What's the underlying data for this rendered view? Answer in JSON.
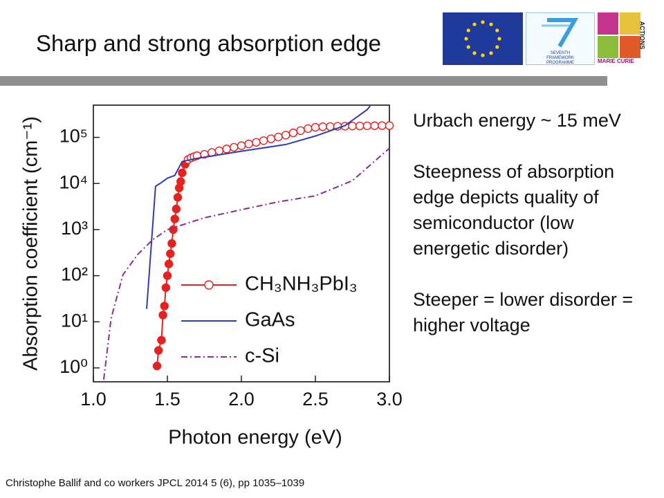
{
  "slide": {
    "title": "Sharp and strong absorption edge",
    "bullets": [
      "Urbach energy ~ 15 meV",
      "Steepness of absorption edge depicts quality of semiconductor (low energetic disorder)",
      "Steeper = lower disorder = higher voltage"
    ],
    "citation": "Christophe Ballif and co workers JPCL 2014 5 (6), pp 1035–1039",
    "logos": {
      "fp7": "SEVENTH FRAMEWORK PROGRAMME",
      "marie_curie": "MARIE CURIE",
      "actions": "ACTIONS"
    }
  },
  "chart_data": {
    "type": "line",
    "xlabel": "Photon energy (eV)",
    "ylabel": "Absorption coefficient (cm⁻¹)",
    "xlim": [
      1.0,
      3.0
    ],
    "ylim": [
      0.5,
      500000
    ],
    "ylog": true,
    "xticks": [
      {
        "value": 1,
        "label": "1.0"
      },
      1.5,
      {
        "value": 2,
        "label": "2.0"
      },
      2.5,
      {
        "value": 3,
        "label": "3.0"
      }
    ],
    "yticks": [
      {
        "value": 1,
        "label": "10⁰"
      },
      {
        "value": 10,
        "label": "10¹"
      },
      {
        "value": 100,
        "label": "10²"
      },
      {
        "value": 1000,
        "label": "10³"
      },
      {
        "value": 10000,
        "label": "10⁴"
      },
      {
        "value": 100000,
        "label": "10⁵"
      }
    ],
    "legend": "lower right",
    "series": [
      {
        "name": "CH₃NH₃PbI₃",
        "color": "#e8201e",
        "marker": "circle",
        "dash": "solid",
        "x": [
          1.43,
          1.44,
          1.46,
          1.47,
          1.48,
          1.49,
          1.5,
          1.51,
          1.52,
          1.53,
          1.54,
          1.55,
          1.56,
          1.57,
          1.58,
          1.59,
          1.6,
          1.62,
          1.64,
          1.66,
          1.68,
          1.7,
          1.75,
          1.8,
          1.85,
          1.9,
          1.95,
          2.0,
          2.05,
          2.1,
          2.15,
          2.2,
          2.25,
          2.3,
          2.35,
          2.4,
          2.45,
          2.5,
          2.55,
          2.6,
          2.65,
          2.7,
          2.75,
          2.8,
          2.85,
          2.9,
          2.95,
          3.0
        ],
        "values": [
          1.1,
          2.4,
          4,
          14,
          22,
          55,
          100,
          180,
          300,
          500,
          1000,
          1700,
          2800,
          5000,
          8000,
          11000,
          17000,
          26000,
          33000,
          36000,
          38000,
          40000,
          43000,
          47000,
          51000,
          56000,
          61000,
          66000,
          72000,
          78000,
          85000,
          93000,
          102000,
          112000,
          125000,
          140000,
          155000,
          165000,
          170000,
          172000,
          174000,
          175000,
          176000,
          177000,
          178000,
          179000,
          180000,
          180000
        ]
      },
      {
        "name": "GaAs",
        "color": "#2a3cb8",
        "marker": "none",
        "dash": "solid",
        "x": [
          1.36,
          1.42,
          1.45,
          1.5,
          1.55,
          1.6,
          1.7,
          2.0,
          2.3,
          2.5,
          2.7,
          2.85,
          2.87
        ],
        "values": [
          19,
          8700,
          10000,
          13000,
          15000,
          30000,
          35000,
          50000,
          70000,
          107000,
          180000,
          400000,
          480000
        ]
      },
      {
        "name": "c-Si",
        "color": "#8b2b8e",
        "marker": "none",
        "dash": "dashdot",
        "x": [
          1.07,
          1.12,
          1.2,
          1.3,
          1.4,
          1.5,
          1.75,
          2.0,
          2.25,
          2.5,
          2.75,
          3.0
        ],
        "values": [
          0.56,
          12,
          105,
          290,
          600,
          1000,
          1800,
          2700,
          4000,
          5400,
          11500,
          58000
        ]
      }
    ]
  }
}
